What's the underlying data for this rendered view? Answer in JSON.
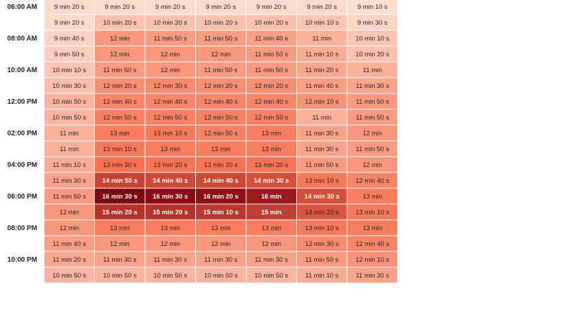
{
  "chart_data": {
    "type": "heatmap",
    "row_labels": [
      "06:00 AM",
      "",
      "08:00 AM",
      "",
      "10:00 AM",
      "",
      "12:00 PM",
      "",
      "02:00 PM",
      "",
      "04:00 PM",
      "",
      "06:00 PM",
      "",
      "08:00 PM",
      "",
      "10:00 PM",
      ""
    ],
    "values_seconds": [
      [
        560,
        560,
        560,
        560,
        560,
        560,
        550
      ],
      [
        560,
        620,
        620,
        620,
        620,
        610,
        570
      ],
      [
        580,
        720,
        710,
        710,
        700,
        660,
        610
      ],
      [
        590,
        720,
        720,
        720,
        710,
        670,
        620
      ],
      [
        610,
        710,
        720,
        710,
        710,
        680,
        660
      ],
      [
        630,
        740,
        750,
        740,
        740,
        700,
        690
      ],
      [
        650,
        760,
        760,
        760,
        760,
        730,
        710
      ],
      [
        650,
        770,
        770,
        770,
        770,
        660,
        710
      ],
      [
        660,
        780,
        790,
        770,
        780,
        690,
        720
      ],
      [
        660,
        790,
        780,
        780,
        780,
        690,
        710
      ],
      [
        670,
        810,
        800,
        800,
        800,
        710,
        720
      ],
      [
        690,
        890,
        880,
        880,
        870,
        790,
        760
      ],
      [
        710,
        990,
        990,
        980,
        960,
        870,
        780
      ],
      [
        720,
        920,
        920,
        910,
        900,
        860,
        790
      ],
      [
        720,
        780,
        780,
        780,
        780,
        790,
        780
      ],
      [
        700,
        720,
        720,
        720,
        720,
        750,
        760
      ],
      [
        680,
        690,
        690,
        690,
        690,
        710,
        730
      ],
      [
        650,
        650,
        650,
        650,
        650,
        670,
        690
      ]
    ],
    "cell_labels": [
      [
        "9 min 20 s",
        "9 min 20 s",
        "9 min 20 s",
        "9 min 20 s",
        "9 min 20 s",
        "9 min 20 s",
        "9 min 10 s"
      ],
      [
        "9 min 20 s",
        "10 min 20 s",
        "10 min 20 s",
        "10 min 20 s",
        "10 min 20 s",
        "10 min 10 s",
        "9 min 30 s"
      ],
      [
        "9 min 40 s",
        "12 min",
        "11 min 50 s",
        "11 min 50 s",
        "11 min 40 s",
        "11 min",
        "10 min 10 s"
      ],
      [
        "9 min 50 s",
        "12 min",
        "12 min",
        "12 min",
        "11 min 50 s",
        "11 min 10 s",
        "10 min 20 s"
      ],
      [
        "10 min 10 s",
        "11 min 50 s",
        "12 min",
        "11 min 50 s",
        "11 min 50 s",
        "11 min 20 s",
        "11 min"
      ],
      [
        "10 min 30 s",
        "12 min 20 s",
        "12 min 30 s",
        "12 min 20 s",
        "12 min 20 s",
        "11 min 40 s",
        "11 min 30 s"
      ],
      [
        "10 min 50 s",
        "12 min 40 s",
        "12 min 40 s",
        "12 min 40 s",
        "12 min 40 s",
        "12 min 10 s",
        "11 min 50 s"
      ],
      [
        "10 min 50 s",
        "12 min 50 s",
        "12 min 50 s",
        "12 min 50 s",
        "12 min 50 s",
        "11 min",
        "11 min 50 s"
      ],
      [
        "11 min",
        "13 min",
        "13 min 10 s",
        "12 min 50 s",
        "13 min",
        "11 min 30 s",
        "12 min"
      ],
      [
        "11 min",
        "13 min 10 s",
        "13 min",
        "13 min",
        "13 min",
        "11 min 30 s",
        "11 min 50 s"
      ],
      [
        "11 min 10 s",
        "13 min 30 s",
        "13 min 20 s",
        "13 min 20 s",
        "13 min 20 s",
        "11 min 50 s",
        "12 min"
      ],
      [
        "11 min 30 s",
        "14 min 50 s",
        "14 min 40 s",
        "14 min 40 s",
        "14 min 30 s",
        "13 min 10 s",
        "12 min 40 s"
      ],
      [
        "11 min 50 s",
        "16 min 30 s",
        "16 min 30 s",
        "16 min 20 s",
        "16 min",
        "14 min 30 s",
        "13 min"
      ],
      [
        "12 min",
        "15 min 20 s",
        "15 min 20 s",
        "15 min 10 s",
        "15 min",
        "14 min 20 s",
        "13 min 10 s"
      ],
      [
        "12 min",
        "13 min",
        "13 min",
        "13 min",
        "13 min",
        "13 min 10 s",
        "13 min"
      ],
      [
        "11 min 40 s",
        "12 min",
        "12 min",
        "12 min",
        "12 min",
        "12 min 30 s",
        "12 min 40 s"
      ],
      [
        "11 min 20 s",
        "11 min 30 s",
        "11 min 30 s",
        "11 min 30 s",
        "11 min 30 s",
        "11 min 50 s",
        "12 min 10 s"
      ],
      [
        "10 min 50 s",
        "10 min 50 s",
        "10 min 50 s",
        "10 min 50 s",
        "10 min 50 s",
        "11 min 10 s",
        "11 min 30 s"
      ]
    ],
    "highlighted_cell": {
      "row": 12,
      "col": 1
    },
    "color_scale": {
      "min_seconds": 540,
      "max_seconds": 990
    },
    "colors": {
      "low": "#fde3d6",
      "mid": "#f8704f",
      "high": "#8b0a15",
      "text_dark": "#222222",
      "text_light": "#ffffff",
      "label": "#222222"
    }
  }
}
